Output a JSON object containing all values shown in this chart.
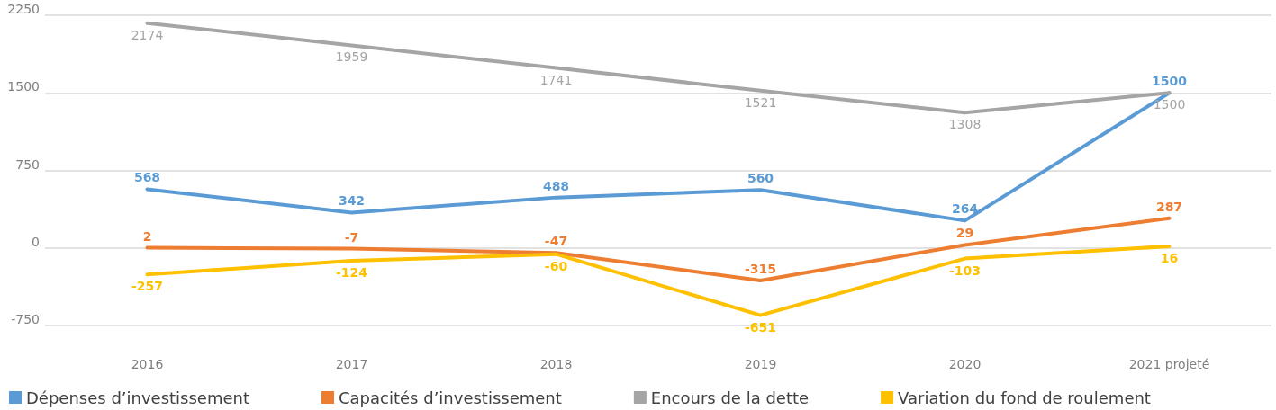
{
  "chart_data": {
    "type": "line",
    "categories": [
      "2016",
      "2017",
      "2018",
      "2019",
      "2020",
      "2021 projeté"
    ],
    "series": [
      {
        "name": "Dépenses d’investissement",
        "color": "#5b9bd5",
        "values": [
          568,
          342,
          488,
          560,
          264,
          1500
        ]
      },
      {
        "name": "Capacités d’investissement",
        "color": "#ed7d31",
        "values": [
          2,
          -7,
          -47,
          -315,
          29,
          287
        ]
      },
      {
        "name": "Encours de la dette",
        "color": "#a5a5a5",
        "values": [
          2174,
          1959,
          1741,
          1521,
          1308,
          1500
        ]
      },
      {
        "name": "Variation du fond de roulement",
        "color": "#ffc000",
        "values": [
          -257,
          -124,
          -60,
          -651,
          -103,
          16
        ]
      }
    ],
    "ylim": [
      -750,
      2250
    ],
    "yticks": [
      -750,
      0,
      750,
      1500,
      2250
    ],
    "grid": "y",
    "legend": "bottom",
    "marker": "none",
    "line_style": "solid",
    "data_labels": true
  }
}
